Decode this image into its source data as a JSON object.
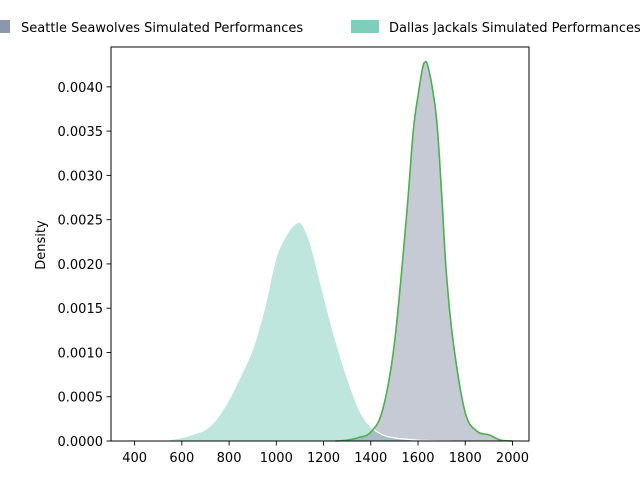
{
  "chart_data": {
    "type": "area",
    "title": "",
    "xlabel": "",
    "ylabel": "Density",
    "xlim": [
      300,
      2070
    ],
    "ylim": [
      0,
      0.00445
    ],
    "xticks": [
      400,
      600,
      800,
      1000,
      1200,
      1400,
      1600,
      1800,
      2000
    ],
    "yticks": [
      0.0,
      0.0005,
      0.001,
      0.0015,
      0.002,
      0.0025,
      0.003,
      0.0035,
      0.004
    ],
    "ytick_labels": [
      "0.0000",
      "0.0005",
      "0.0010",
      "0.0015",
      "0.0020",
      "0.0025",
      "0.0030",
      "0.0035",
      "0.0040"
    ],
    "legend": {
      "placement": "top",
      "entries": [
        "Seattle Seawolves Simulated Performances",
        "Dallas Jackals Simulated Performances"
      ]
    },
    "grid": false,
    "series": [
      {
        "name": "Seattle Seawolves Simulated Performances",
        "color": "#8c96ac",
        "fill_opacity": 0.5,
        "line_color": "#4caf50",
        "x": [
          1250,
          1300,
          1350,
          1400,
          1450,
          1500,
          1550,
          1580,
          1600,
          1620,
          1630,
          1640,
          1660,
          1680,
          1700,
          1720,
          1750,
          1800,
          1850,
          1900,
          1950,
          2000
        ],
        "values": [
          0.0,
          1e-05,
          4e-05,
          0.0001,
          0.00035,
          0.0011,
          0.0025,
          0.0035,
          0.0039,
          0.00422,
          0.00428,
          0.00425,
          0.004,
          0.0036,
          0.0028,
          0.0019,
          0.0011,
          0.00032,
          0.00011,
          7e-05,
          1e-05,
          0.0
        ]
      },
      {
        "name": "Dallas Jackals Simulated Performances",
        "color": "#7fcdbb",
        "fill_opacity": 0.5,
        "line_color": "#ffffff",
        "x": [
          520,
          600,
          650,
          700,
          750,
          800,
          850,
          900,
          950,
          1000,
          1050,
          1080,
          1100,
          1120,
          1150,
          1200,
          1250,
          1300,
          1350,
          1400,
          1450,
          1500,
          1550,
          1600,
          1650,
          1700,
          1750
        ],
        "values": [
          0.0,
          4e-05,
          8e-05,
          0.00013,
          0.00026,
          0.00047,
          0.00074,
          0.00104,
          0.0015,
          0.00208,
          0.00236,
          0.00245,
          0.00247,
          0.0024,
          0.00218,
          0.00165,
          0.00115,
          0.00072,
          0.00036,
          0.00016,
          7e-05,
          3.5e-05,
          2e-05,
          1e-05,
          5e-06,
          2e-06,
          0.0
        ]
      }
    ]
  }
}
